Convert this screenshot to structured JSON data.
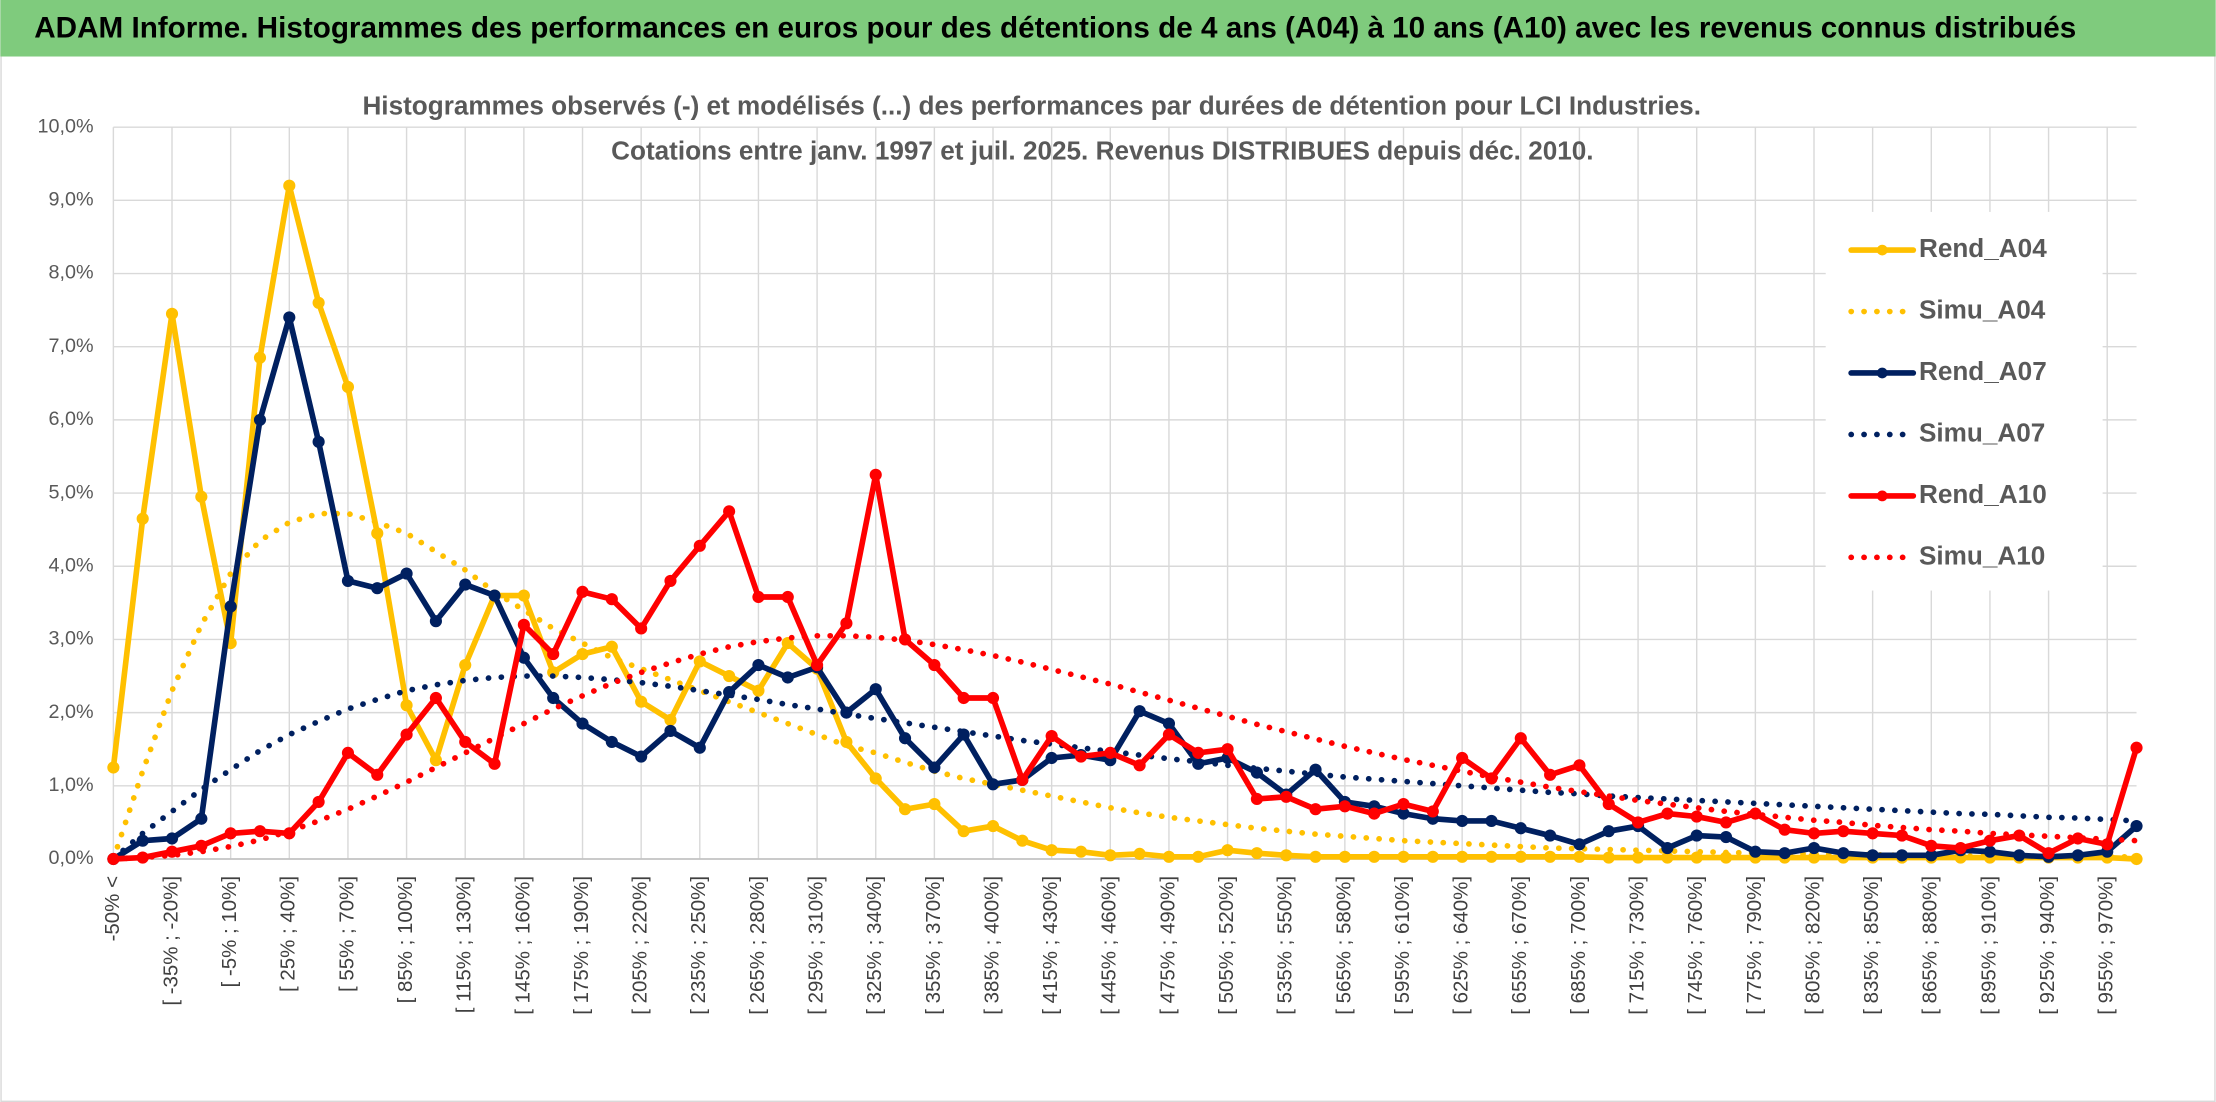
{
  "chart_data": {
    "type": "line",
    "header": "ADAM Informe. Histogrammes des performances en euros pour des détentions de 4 ans (A04) à 10 ans (A10) avec les revenus connus distribués",
    "title": "Histogrammes observés (-) et modélisés (...) des performances par durées de détention pour LCI Industries.",
    "subtitle": "Cotations entre janv. 1997 et juil. 2025. Revenus DISTRIBUES depuis déc. 2010.",
    "categories": [
      "-50% <",
      null,
      "[ -35% ; -20%]",
      null,
      "[ -5% ; 10%]",
      null,
      "[ 25% ; 40%]",
      null,
      "[ 55% ; 70%]",
      null,
      "[ 85% ; 100%]",
      null,
      "[ 115% ; 130%]",
      null,
      "[ 145% ; 160%]",
      null,
      "[ 175% ; 190%]",
      null,
      "[ 205% ; 220%]",
      null,
      "[ 235% ; 250%]",
      null,
      "[ 265% ; 280%]",
      null,
      "[ 295% ; 310%]",
      null,
      "[ 325% ; 340%]",
      null,
      "[ 355% ; 370%]",
      null,
      "[ 385% ; 400%]",
      null,
      "[ 415% ; 430%]",
      null,
      "[ 445% ; 460%]",
      null,
      "[ 475% ; 490%]",
      null,
      "[ 505% ; 520%]",
      null,
      "[ 535% ; 550%]",
      null,
      "[ 565% ; 580%]",
      null,
      "[ 595% ; 610%]",
      null,
      "[ 625% ; 640%]",
      null,
      "[ 655% ; 670%]",
      null,
      "[ 685% ; 700%]",
      null,
      "[ 715% ; 730%]",
      null,
      "[ 745% ; 760%]",
      null,
      "[ 775% ; 790%]",
      null,
      "[ 805% ; 820%]",
      null,
      "[ 835% ; 850%]",
      null,
      "[ 865% ; 880%]",
      null,
      "[ 895% ; 910%]",
      null,
      "[ 925% ; 940%]",
      null,
      "[ 955% ; 970%]",
      null
    ],
    "ylim": [
      0,
      10
    ],
    "yticks": [
      {
        "value": 0,
        "label": "0,0%"
      },
      {
        "value": 1,
        "label": "1,0%"
      },
      {
        "value": 2,
        "label": "2,0%"
      },
      {
        "value": 3,
        "label": "3,0%"
      },
      {
        "value": 4,
        "label": "4,0%"
      },
      {
        "value": 5,
        "label": "5,0%"
      },
      {
        "value": 6,
        "label": "6,0%"
      },
      {
        "value": 7,
        "label": "7,0%"
      },
      {
        "value": 8,
        "label": "8,0%"
      },
      {
        "value": 9,
        "label": "9,0%"
      },
      {
        "value": 10,
        "label": "10,0%"
      }
    ],
    "grid": true,
    "legend": "right",
    "series": [
      {
        "name": "Rend_A04",
        "color": "#FFC000",
        "style": "solid",
        "values": [
          1.25,
          4.65,
          7.45,
          4.95,
          2.95,
          6.85,
          9.2,
          7.6,
          6.45,
          4.45,
          2.1,
          1.35,
          2.65,
          3.6,
          3.6,
          2.55,
          2.8,
          2.9,
          2.15,
          1.9,
          2.7,
          2.5,
          2.3,
          2.95,
          2.6,
          1.6,
          1.1,
          0.68,
          0.75,
          0.38,
          0.45,
          0.25,
          0.12,
          0.1,
          0.05,
          0.07,
          0.03,
          0.03,
          0.12,
          0.08,
          0.05,
          0.03,
          0.03,
          0.03,
          0.03,
          0.03,
          0.03,
          0.03,
          0.03,
          0.03,
          0.03,
          0.02,
          0.02,
          0.02,
          0.02,
          0.02,
          0.02,
          0.02,
          0.02,
          0.02,
          0.02,
          0.02,
          0.02,
          0.02,
          0.02,
          0.02,
          0.02,
          0.02,
          0.02,
          0
        ]
      },
      {
        "name": "Simu_A04",
        "color": "#FFC000",
        "style": "dotted",
        "values": [
          0,
          1.2,
          2.3,
          3.2,
          3.9,
          4.35,
          4.6,
          4.72,
          4.72,
          4.6,
          4.45,
          4.2,
          3.95,
          3.65,
          3.4,
          3.15,
          2.95,
          2.75,
          2.6,
          2.45,
          2.3,
          2.15,
          2.0,
          1.85,
          1.7,
          1.55,
          1.45,
          1.32,
          1.2,
          1.1,
          1.02,
          0.94,
          0.86,
          0.78,
          0.7,
          0.63,
          0.57,
          0.52,
          0.47,
          0.42,
          0.38,
          0.34,
          0.31,
          0.28,
          0.25,
          0.23,
          0.21,
          0.19,
          0.17,
          0.15,
          0.14,
          0.13,
          0.12,
          0.11,
          0.1,
          0.09,
          0.08,
          0.07,
          0.07,
          0.06,
          0.06,
          0.05,
          0.05,
          0.04,
          0.04,
          0.04,
          0.03,
          0.03,
          0.03,
          0.03
        ]
      },
      {
        "name": "Rend_A07",
        "color": "#002060",
        "style": "solid",
        "values": [
          0,
          0.25,
          0.28,
          0.55,
          3.45,
          6.0,
          7.4,
          5.7,
          3.8,
          3.7,
          3.9,
          3.25,
          3.75,
          3.6,
          2.75,
          2.2,
          1.85,
          1.6,
          1.4,
          1.75,
          1.52,
          2.28,
          2.65,
          2.48,
          2.62,
          2.0,
          2.32,
          1.65,
          1.25,
          1.7,
          1.02,
          1.08,
          1.38,
          1.42,
          1.35,
          2.02,
          1.85,
          1.3,
          1.38,
          1.18,
          0.88,
          1.22,
          0.78,
          0.72,
          0.62,
          0.55,
          0.52,
          0.52,
          0.42,
          0.32,
          0.2,
          0.38,
          0.45,
          0.15,
          0.32,
          0.3,
          0.1,
          0.08,
          0.15,
          0.08,
          0.05,
          0.05,
          0.05,
          0.12,
          0.1,
          0.05,
          0.03,
          0.05,
          0.1,
          0.45
        ]
      },
      {
        "name": "Simu_A07",
        "color": "#002060",
        "style": "dotted",
        "values": [
          0,
          0.35,
          0.65,
          0.95,
          1.22,
          1.48,
          1.7,
          1.88,
          2.05,
          2.18,
          2.3,
          2.38,
          2.44,
          2.48,
          2.5,
          2.5,
          2.48,
          2.45,
          2.41,
          2.36,
          2.3,
          2.24,
          2.18,
          2.11,
          2.05,
          1.98,
          1.92,
          1.86,
          1.8,
          1.74,
          1.68,
          1.62,
          1.57,
          1.52,
          1.47,
          1.42,
          1.37,
          1.33,
          1.28,
          1.24,
          1.2,
          1.16,
          1.12,
          1.09,
          1.06,
          1.03,
          1.0,
          0.97,
          0.94,
          0.91,
          0.89,
          0.86,
          0.84,
          0.82,
          0.8,
          0.78,
          0.76,
          0.74,
          0.72,
          0.7,
          0.68,
          0.66,
          0.64,
          0.62,
          0.61,
          0.59,
          0.57,
          0.56,
          0.54,
          0.52
        ]
      },
      {
        "name": "Rend_A10",
        "color": "#FF0000",
        "style": "solid",
        "values": [
          0,
          0.02,
          0.1,
          0.18,
          0.35,
          0.38,
          0.35,
          0.78,
          1.45,
          1.15,
          1.7,
          2.2,
          1.6,
          1.3,
          3.2,
          2.8,
          3.65,
          3.55,
          3.15,
          3.8,
          4.28,
          4.75,
          3.58,
          3.58,
          2.65,
          3.22,
          5.25,
          3.0,
          2.65,
          2.2,
          2.2,
          1.08,
          1.68,
          1.4,
          1.45,
          1.28,
          1.7,
          1.45,
          1.5,
          0.82,
          0.85,
          0.68,
          0.72,
          0.62,
          0.75,
          0.65,
          1.38,
          1.1,
          1.65,
          1.15,
          1.28,
          0.75,
          0.5,
          0.62,
          0.58,
          0.5,
          0.62,
          0.4,
          0.35,
          0.38,
          0.35,
          0.32,
          0.18,
          0.15,
          0.25,
          0.32,
          0.08,
          0.28,
          0.2,
          1.52
        ]
      },
      {
        "name": "Simu_A10",
        "color": "#FF0000",
        "style": "dotted",
        "values": [
          0,
          0.02,
          0.05,
          0.1,
          0.17,
          0.26,
          0.38,
          0.52,
          0.68,
          0.86,
          1.05,
          1.25,
          1.45,
          1.65,
          1.85,
          2.05,
          2.23,
          2.4,
          2.55,
          2.68,
          2.8,
          2.9,
          2.97,
          3.02,
          3.05,
          3.05,
          3.03,
          2.99,
          2.93,
          2.86,
          2.78,
          2.69,
          2.59,
          2.49,
          2.39,
          2.28,
          2.17,
          2.06,
          1.95,
          1.84,
          1.74,
          1.64,
          1.54,
          1.45,
          1.36,
          1.28,
          1.2,
          1.12,
          1.05,
          0.98,
          0.92,
          0.86,
          0.8,
          0.75,
          0.7,
          0.65,
          0.61,
          0.57,
          0.53,
          0.5,
          0.46,
          0.43,
          0.4,
          0.38,
          0.35,
          0.33,
          0.31,
          0.29,
          0.27,
          0.25
        ]
      }
    ]
  }
}
